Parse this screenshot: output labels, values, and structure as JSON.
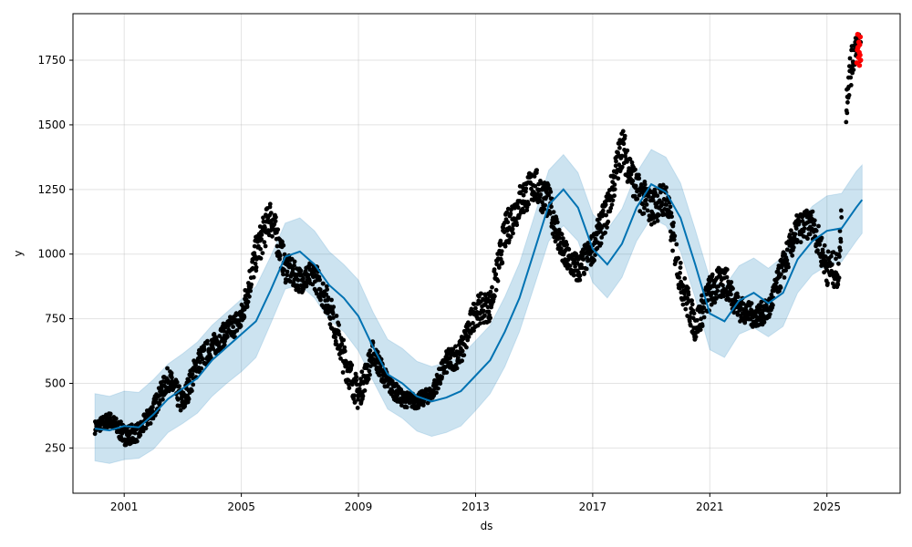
{
  "chart_data": {
    "type": "scatter",
    "title": "",
    "xlabel": "ds",
    "ylabel": "y",
    "xlim": [
      1999.25,
      2027.5
    ],
    "ylim": [
      75,
      1930
    ],
    "x_ticks": [
      2001,
      2005,
      2009,
      2013,
      2017,
      2021,
      2025
    ],
    "x_tick_labels": [
      "2001",
      "2005",
      "2009",
      "2013",
      "2017",
      "2021",
      "2025"
    ],
    "y_ticks": [
      250,
      500,
      750,
      1000,
      1250,
      1500,
      1750
    ],
    "y_tick_labels": [
      "250",
      "500",
      "750",
      "1000",
      "1250",
      "1500",
      "1750"
    ],
    "grid": true,
    "legend": "none",
    "colors": {
      "observed": "#000000",
      "forecast_line": "#0072B2",
      "uncertainty_band": "#0072B2",
      "highlight": "#ff0000"
    },
    "forecast": {
      "x": [
        2000.0,
        2000.5,
        2001.0,
        2001.5,
        2002.0,
        2002.5,
        2003.0,
        2003.5,
        2004.0,
        2004.5,
        2005.0,
        2005.5,
        2006.0,
        2006.5,
        2007.0,
        2007.5,
        2008.0,
        2008.5,
        2009.0,
        2009.5,
        2010.0,
        2010.5,
        2011.0,
        2011.5,
        2012.0,
        2012.5,
        2013.0,
        2013.5,
        2014.0,
        2014.5,
        2015.0,
        2015.5,
        2016.0,
        2016.5,
        2017.0,
        2017.5,
        2018.0,
        2018.5,
        2019.0,
        2019.5,
        2020.0,
        2020.5,
        2021.0,
        2021.5,
        2022.0,
        2022.5,
        2023.0,
        2023.5,
        2024.0,
        2024.5,
        2025.0,
        2025.5,
        2026.0,
        2026.2
      ],
      "yhat": [
        325,
        318,
        335,
        330,
        380,
        440,
        480,
        520,
        590,
        640,
        690,
        740,
        860,
        990,
        1010,
        960,
        880,
        830,
        760,
        640,
        535,
        500,
        450,
        430,
        445,
        470,
        530,
        590,
        700,
        830,
        1010,
        1190,
        1250,
        1180,
        1020,
        960,
        1040,
        1180,
        1270,
        1240,
        1140,
        960,
        770,
        740,
        820,
        850,
        810,
        850,
        980,
        1050,
        1090,
        1100,
        1180,
        1210
      ],
      "yhat_lower": [
        200,
        190,
        205,
        210,
        245,
        310,
        345,
        385,
        450,
        500,
        545,
        600,
        730,
        865,
        880,
        830,
        745,
        700,
        625,
        510,
        400,
        365,
        315,
        295,
        310,
        335,
        395,
        460,
        565,
        700,
        875,
        1050,
        1110,
        1050,
        890,
        830,
        910,
        1050,
        1140,
        1110,
        1010,
        830,
        630,
        600,
        690,
        715,
        680,
        720,
        850,
        920,
        955,
        970,
        1050,
        1080
      ],
      "yhat_upper": [
        460,
        450,
        470,
        465,
        515,
        575,
        615,
        660,
        725,
        775,
        825,
        875,
        990,
        1120,
        1140,
        1090,
        1010,
        960,
        900,
        775,
        670,
        635,
        585,
        565,
        580,
        605,
        665,
        725,
        835,
        965,
        1145,
        1325,
        1385,
        1315,
        1155,
        1095,
        1175,
        1315,
        1405,
        1375,
        1275,
        1095,
        905,
        875,
        955,
        985,
        945,
        990,
        1115,
        1185,
        1225,
        1235,
        1320,
        1345
      ]
    },
    "observed_envelope": {
      "x": [
        2000.0,
        2000.5,
        2001.0,
        2001.5,
        2002.0,
        2002.5,
        2003.0,
        2003.5,
        2004.0,
        2004.5,
        2005.0,
        2005.5,
        2006.0,
        2006.5,
        2007.0,
        2007.5,
        2008.0,
        2008.5,
        2009.0,
        2009.5,
        2010.0,
        2010.5,
        2011.0,
        2011.5,
        2012.0,
        2012.5,
        2013.0,
        2013.5,
        2014.0,
        2014.5,
        2015.0,
        2015.5,
        2016.0,
        2016.5,
        2017.0,
        2017.5,
        2018.0,
        2018.5,
        2019.0,
        2019.5,
        2020.0,
        2020.5,
        2021.0,
        2021.5,
        2022.0,
        2022.5,
        2023.0,
        2023.5,
        2024.0,
        2024.5,
        2025.0,
        2025.4,
        2025.7,
        2026.0,
        2026.15
      ],
      "center": [
        330,
        360,
        300,
        310,
        400,
        520,
        420,
        580,
        640,
        700,
        750,
        1000,
        1150,
        950,
        900,
        920,
        800,
        600,
        450,
        620,
        500,
        440,
        430,
        460,
        580,
        620,
        780,
        800,
        1080,
        1200,
        1270,
        1200,
        1000,
        940,
        1020,
        1170,
        1420,
        1250,
        1180,
        1220,
        900,
        720,
        850,
        900,
        790,
        760,
        780,
        950,
        1100,
        1120,
        950,
        930,
        1650,
        1820,
        1790
      ],
      "spread": [
        25,
        30,
        40,
        35,
        40,
        45,
        50,
        50,
        45,
        45,
        55,
        70,
        70,
        60,
        50,
        55,
        60,
        70,
        60,
        50,
        40,
        30,
        30,
        30,
        45,
        55,
        60,
        60,
        70,
        70,
        70,
        70,
        60,
        60,
        60,
        70,
        80,
        70,
        70,
        70,
        70,
        60,
        70,
        65,
        50,
        45,
        45,
        60,
        60,
        55,
        70,
        70,
        80,
        60,
        50
      ]
    },
    "highlight_points": {
      "x": [
        2026.02,
        2026.04,
        2026.05,
        2026.06,
        2026.08,
        2026.09,
        2026.1,
        2026.11,
        2026.12,
        2026.13,
        2026.14,
        2026.15
      ],
      "y": [
        1740,
        1790,
        1850,
        1800,
        1760,
        1820,
        1780,
        1730,
        1810,
        1770,
        1840,
        1750
      ]
    }
  }
}
